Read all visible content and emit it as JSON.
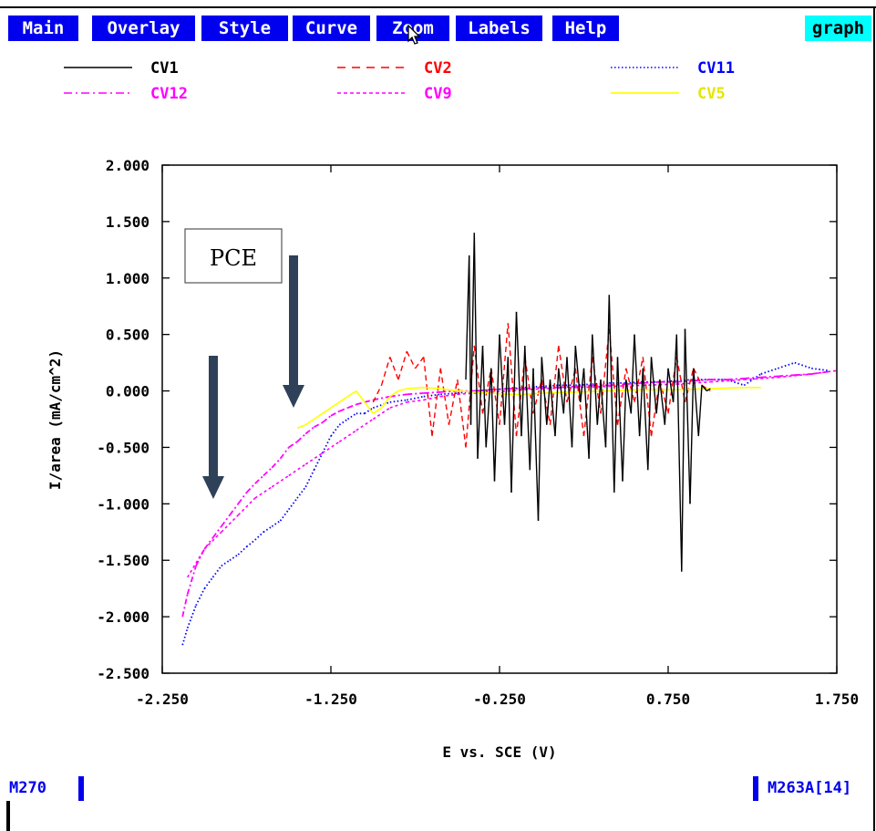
{
  "menu": {
    "items": [
      "Main",
      "Overlay",
      "Style",
      "Curve",
      "Zoom",
      "Labels",
      "Help"
    ],
    "active_tag": "graph"
  },
  "footer": {
    "left_label": "M270",
    "right_label": "M263A[14]"
  },
  "annotation": {
    "label": "PCE"
  },
  "chart_data": {
    "type": "scatter",
    "xlabel": "E vs. SCE (V)",
    "ylabel": "I/area (mA/cm^2)",
    "xlim": [
      -2.25,
      1.75
    ],
    "ylim": [
      -2.5,
      2.0
    ],
    "x_ticks": [
      "-2.250",
      "-1.250",
      "-0.250",
      "0.750",
      "1.750"
    ],
    "y_ticks": [
      "2.000",
      "1.500",
      "1.000",
      "0.500",
      "0.000",
      "-0.500",
      "-1.000",
      "-1.500",
      "-2.000",
      "-2.500"
    ],
    "legend": [
      {
        "name": "CV1",
        "color": "#000000",
        "dash": "solid"
      },
      {
        "name": "CV2",
        "color": "#ff0000",
        "dash": "dashed"
      },
      {
        "name": "CV11",
        "color": "#0000ff",
        "dash": "dotted"
      },
      {
        "name": "CV12",
        "color": "#ff00ff",
        "dash": "dashdot"
      },
      {
        "name": "CV9",
        "color": "#ff00ff",
        "dash": "shortdash"
      },
      {
        "name": "CV5",
        "color": "#ffff00",
        "dash": "solid"
      }
    ],
    "series": [
      {
        "name": "CV1",
        "color": "#000000",
        "x": [
          -0.45,
          -0.43,
          -0.42,
          -0.4,
          -0.38,
          -0.35,
          -0.33,
          -0.3,
          -0.28,
          -0.25,
          -0.22,
          -0.2,
          -0.18,
          -0.15,
          -0.12,
          -0.1,
          -0.07,
          -0.05,
          -0.02,
          0.0,
          0.03,
          0.05,
          0.08,
          0.1,
          0.13,
          0.15,
          0.18,
          0.2,
          0.23,
          0.25,
          0.28,
          0.3,
          0.33,
          0.35,
          0.38,
          0.4,
          0.43,
          0.45,
          0.48,
          0.5,
          0.53,
          0.55,
          0.58,
          0.6,
          0.63,
          0.65,
          0.68,
          0.7,
          0.73,
          0.75,
          0.78,
          0.8,
          0.83,
          0.85,
          0.88,
          0.9,
          0.93,
          0.95,
          0.98,
          1.0
        ],
        "y": [
          0.1,
          1.2,
          -0.3,
          1.4,
          -0.6,
          0.4,
          -0.5,
          0.2,
          -0.8,
          0.5,
          -0.3,
          0.3,
          -0.9,
          0.7,
          -0.4,
          0.4,
          -0.7,
          0.2,
          -1.15,
          0.3,
          -0.3,
          0.1,
          -0.4,
          0.2,
          -0.2,
          0.3,
          -0.5,
          0.4,
          -0.1,
          0.2,
          -0.6,
          0.5,
          -0.3,
          0.1,
          -0.5,
          0.85,
          -0.9,
          0.3,
          -0.8,
          0.1,
          -0.2,
          0.5,
          -0.4,
          0.2,
          -0.7,
          0.3,
          -0.2,
          0.1,
          -0.3,
          0.2,
          -0.1,
          0.5,
          -1.6,
          0.55,
          -1.0,
          0.2,
          -0.4,
          0.05,
          0.0,
          0.02
        ]
      },
      {
        "name": "CV2",
        "color": "#ff0000",
        "x": [
          -1.0,
          -0.95,
          -0.9,
          -0.85,
          -0.8,
          -0.75,
          -0.7,
          -0.65,
          -0.6,
          -0.55,
          -0.5,
          -0.45,
          -0.4,
          -0.35,
          -0.3,
          -0.25,
          -0.2,
          -0.15,
          -0.1,
          -0.05,
          0.0,
          0.05,
          0.1,
          0.15,
          0.2,
          0.25,
          0.3,
          0.35,
          0.4,
          0.45,
          0.5,
          0.55,
          0.6,
          0.65,
          0.7,
          0.75,
          0.8,
          0.85,
          0.9,
          0.95,
          1.0
        ],
        "y": [
          -0.1,
          0.05,
          0.3,
          0.1,
          0.35,
          0.2,
          0.3,
          -0.4,
          0.2,
          -0.3,
          0.1,
          -0.5,
          0.4,
          -0.2,
          0.2,
          -0.3,
          0.6,
          -0.4,
          0.3,
          -0.2,
          0.1,
          -0.3,
          0.4,
          -0.1,
          0.2,
          -0.4,
          0.3,
          -0.2,
          0.55,
          -0.3,
          0.2,
          -0.1,
          0.3,
          -0.4,
          0.1,
          -0.2,
          0.3,
          -0.1,
          0.2,
          0.05,
          0.0
        ]
      },
      {
        "name": "CV11",
        "color": "#0000ff",
        "x": [
          -2.13,
          -2.1,
          -2.05,
          -2.0,
          -1.95,
          -1.9,
          -1.85,
          -1.8,
          -1.75,
          -1.7,
          -1.65,
          -1.6,
          -1.55,
          -1.5,
          -1.45,
          -1.4,
          -1.35,
          -1.3,
          -1.25,
          -1.2,
          -1.15,
          -1.1,
          -1.05,
          -1.0,
          -0.9,
          -0.8,
          -0.7,
          -0.6,
          -0.5,
          -0.4,
          -0.3,
          -0.2,
          -0.1,
          0.0,
          0.1,
          0.2,
          0.3,
          0.4,
          0.5,
          0.6,
          0.7,
          0.8,
          0.9,
          1.0,
          1.1,
          1.2,
          1.3,
          1.4,
          1.5,
          1.6,
          1.7
        ],
        "y": [
          -2.25,
          -2.1,
          -1.9,
          -1.75,
          -1.65,
          -1.55,
          -1.5,
          -1.45,
          -1.38,
          -1.32,
          -1.25,
          -1.2,
          -1.15,
          -1.05,
          -0.95,
          -0.85,
          -0.7,
          -0.55,
          -0.4,
          -0.3,
          -0.25,
          -0.2,
          -0.2,
          -0.15,
          -0.1,
          -0.08,
          -0.05,
          -0.03,
          -0.02,
          0.0,
          0.01,
          0.02,
          0.03,
          0.04,
          0.05,
          0.05,
          0.06,
          0.07,
          0.07,
          0.08,
          0.08,
          0.09,
          0.1,
          0.1,
          0.1,
          0.05,
          0.15,
          0.2,
          0.25,
          0.2,
          0.18
        ]
      },
      {
        "name": "CV12",
        "color": "#ff00ff",
        "x": [
          -2.13,
          -2.1,
          -2.05,
          -2.0,
          -1.95,
          -1.9,
          -1.85,
          -1.8,
          -1.75,
          -1.7,
          -1.65,
          -1.6,
          -1.55,
          -1.5,
          -1.45,
          -1.4,
          -1.35,
          -1.3,
          -1.25,
          -1.2,
          -1.15,
          -1.1,
          -1.05,
          -1.0,
          -0.9,
          -0.8,
          -0.7,
          -0.6,
          -0.5,
          -0.4,
          -0.3,
          -0.2,
          -0.1,
          0.0,
          0.1,
          0.2,
          0.3,
          0.4,
          0.5,
          0.6,
          0.7,
          0.8,
          0.9,
          1.0,
          1.1,
          1.2,
          1.3,
          1.4,
          1.5,
          1.6,
          1.7
        ],
        "y": [
          -2.0,
          -1.8,
          -1.55,
          -1.4,
          -1.3,
          -1.2,
          -1.1,
          -1.0,
          -0.9,
          -0.82,
          -0.75,
          -0.68,
          -0.6,
          -0.5,
          -0.45,
          -0.38,
          -0.32,
          -0.28,
          -0.22,
          -0.18,
          -0.15,
          -0.12,
          -0.1,
          -0.08,
          -0.05,
          -0.03,
          -0.02,
          -0.01,
          0.0,
          0.0,
          0.01,
          0.02,
          0.02,
          0.03,
          0.03,
          0.04,
          0.05,
          0.05,
          0.06,
          0.07,
          0.08,
          0.08,
          0.09,
          0.1,
          0.1,
          0.11,
          0.12,
          0.13,
          0.14,
          0.15,
          0.17
        ]
      },
      {
        "name": "CV9",
        "color": "#ff00ff",
        "x": [
          -2.1,
          -2.0,
          -1.9,
          -1.8,
          -1.7,
          -1.6,
          -1.5,
          -1.4,
          -1.3,
          -1.2,
          -1.1,
          -1.0,
          -0.9,
          -0.8,
          -0.7,
          -0.6,
          -0.5,
          -0.4,
          -0.3,
          -0.2,
          -0.1,
          0.0,
          0.2,
          0.4,
          0.6,
          0.8,
          1.0,
          1.2,
          1.4,
          1.6,
          1.75
        ],
        "y": [
          -1.65,
          -1.4,
          -1.25,
          -1.1,
          -0.95,
          -0.85,
          -0.75,
          -0.65,
          -0.55,
          -0.45,
          -0.35,
          -0.25,
          -0.15,
          -0.1,
          -0.08,
          -0.05,
          -0.03,
          -0.02,
          -0.01,
          0.0,
          0.01,
          0.02,
          0.03,
          0.04,
          0.05,
          0.06,
          0.08,
          0.1,
          0.12,
          0.15,
          0.18
        ]
      },
      {
        "name": "CV5",
        "color": "#ffff00",
        "x": [
          -1.45,
          -1.4,
          -1.35,
          -1.3,
          -1.25,
          -1.2,
          -1.15,
          -1.1,
          -1.05,
          -1.0,
          -0.95,
          -0.9,
          -0.85,
          -0.8,
          -0.7,
          -0.6,
          -0.5,
          -0.4,
          -0.3,
          -0.2,
          -0.1,
          0.0,
          0.2,
          0.4,
          0.6,
          0.8,
          1.0,
          1.2,
          1.3
        ],
        "y": [
          -0.33,
          -0.3,
          -0.25,
          -0.2,
          -0.15,
          -0.1,
          -0.05,
          0.0,
          -0.1,
          -0.2,
          -0.15,
          -0.05,
          0.0,
          0.02,
          0.03,
          0.02,
          0.0,
          -0.01,
          -0.02,
          -0.03,
          -0.03,
          -0.02,
          -0.01,
          0.0,
          0.01,
          0.01,
          0.02,
          0.03,
          0.03
        ]
      }
    ]
  }
}
